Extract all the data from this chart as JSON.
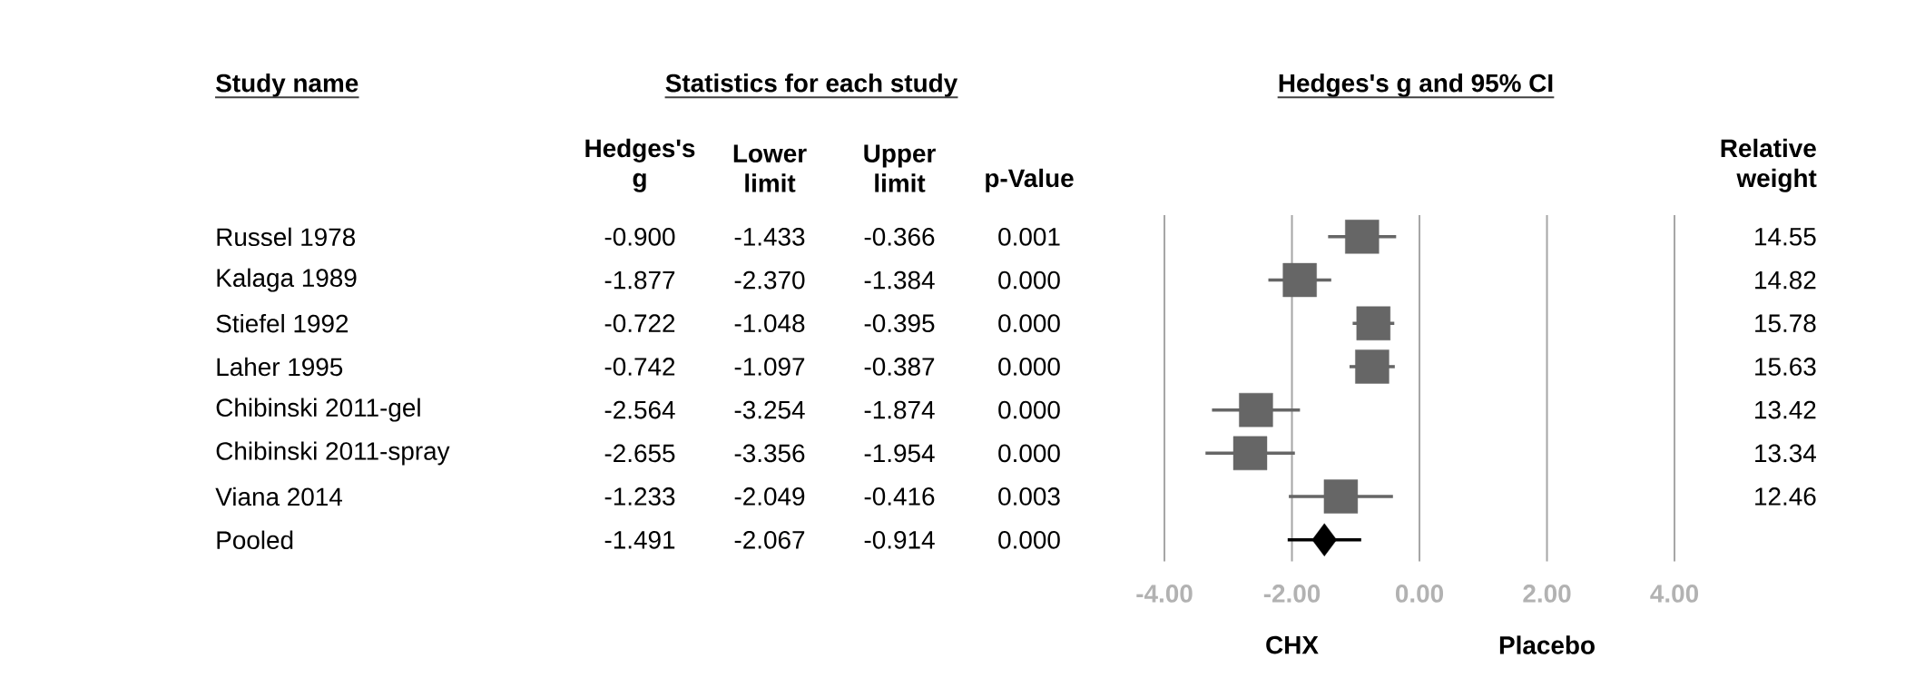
{
  "chart_data": [
    {
      "type": "other",
      "title": "Statistics for each study",
      "ylabel": "Study name",
      "categories": [
        "Hedges's g",
        "Lower limit",
        "Upper limit",
        "p-Value"
      ],
      "y_categories": [
        "Russel 1978",
        "Kalaga 1989",
        "Stiefel 1992",
        "Laher 1995",
        "Chibinski 2011-gel",
        "Chibinski 2011-spray",
        "Viana 2014",
        "Pooled"
      ],
      "cell_labels": [
        [
          "-0.900",
          "-1.433",
          "-0.366",
          "0.001"
        ],
        [
          "-1.877",
          "-2.370",
          "-1.384",
          "0.000"
        ],
        [
          "-0.722",
          "-1.048",
          "-0.395",
          "0.000"
        ],
        [
          "-0.742",
          "-1.097",
          "-0.387",
          "0.000"
        ],
        [
          "-2.564",
          "-3.254",
          "-1.874",
          "0.000"
        ],
        [
          "-2.655",
          "-3.356",
          "-1.954",
          "0.000"
        ],
        [
          "-1.233",
          "-2.049",
          "-0.416",
          "0.003"
        ],
        [
          "-1.491",
          "-2.067",
          "-0.914",
          "0.000"
        ]
      ]
    },
    {
      "type": "scatter",
      "title": "Hedges's g and 95% CI",
      "orientation": "horizontal",
      "grid": "x",
      "categories": [
        null,
        null,
        null,
        null,
        null,
        null,
        null,
        null
      ],
      "xlim": [
        -4,
        4
      ],
      "xticks": [
        {
          "value": -4,
          "label": "-4.00"
        },
        {
          "value": -2,
          "label": "-2.00"
        },
        {
          "value": 0,
          "label": "0.00"
        },
        {
          "value": 2,
          "label": "2.00"
        },
        {
          "value": 4,
          "label": "4.00"
        }
      ],
      "annotations": [
        "CHX",
        "Placebo"
      ],
      "series": [
        {
          "color": "#666666",
          "marker": "square",
          "values": [
            -0.9,
            -1.877,
            -0.722,
            -0.742,
            -2.564,
            -2.655,
            -1.233,
            null
          ],
          "errors": [
            [
              -1.433,
              -0.366
            ],
            [
              -2.37,
              -1.384
            ],
            [
              -1.048,
              -0.395
            ],
            [
              -1.097,
              -0.387
            ],
            [
              -3.254,
              -1.874
            ],
            [
              -3.356,
              -1.954
            ],
            [
              -2.049,
              -0.416
            ],
            null
          ]
        },
        {
          "color": "#000000",
          "marker": "diamond",
          "values": [
            null,
            null,
            null,
            null,
            null,
            null,
            null,
            -1.491
          ],
          "errors": [
            null,
            null,
            null,
            null,
            null,
            null,
            null,
            [
              -2.067,
              -0.914
            ]
          ]
        }
      ]
    },
    {
      "type": "other",
      "title": "Relative weight",
      "annotations": [
        "14.55",
        "14.82",
        "15.78",
        "15.63",
        "13.42",
        "13.34",
        "12.46"
      ]
    }
  ]
}
